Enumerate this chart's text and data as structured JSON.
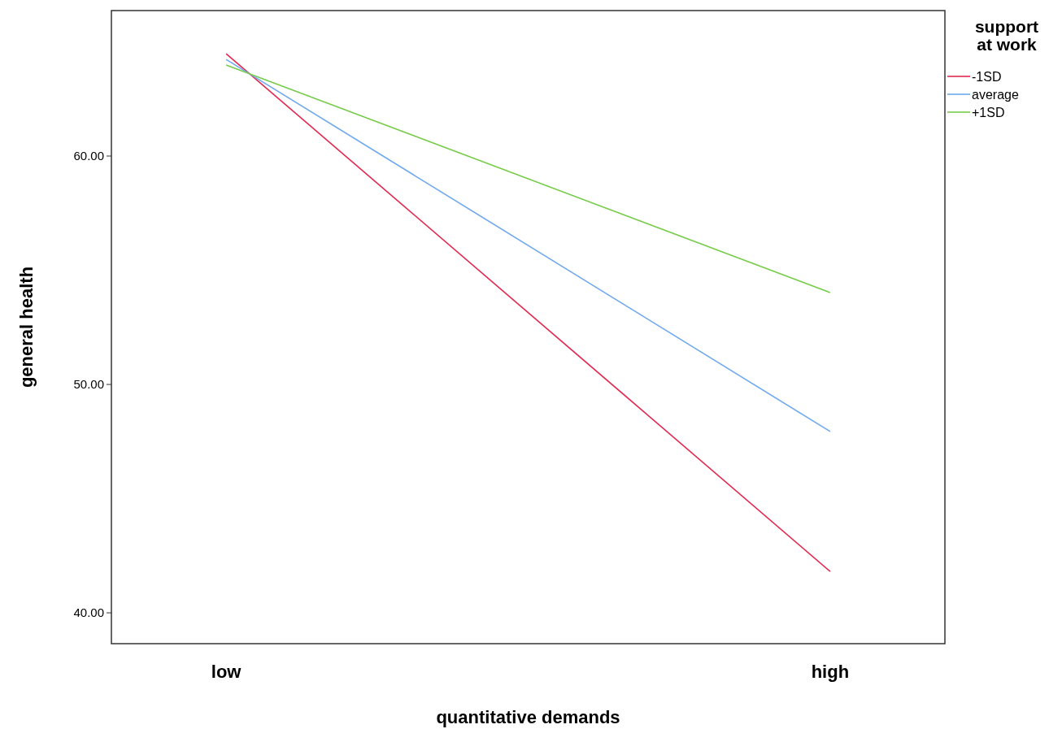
{
  "chart_data": {
    "type": "line",
    "xlabel": "quantitative demands",
    "ylabel": "general health",
    "legend_title": "support\nat work",
    "categories": [
      "low",
      "high"
    ],
    "series": [
      {
        "name": "-1SD",
        "color": "#e2284f",
        "values": [
          64.48,
          41.81
        ]
      },
      {
        "name": "average",
        "color": "#6fa8ee",
        "values": [
          64.23,
          47.94
        ]
      },
      {
        "name": "+1SD",
        "color": "#78cc4c",
        "values": [
          63.99,
          54.02
        ]
      }
    ],
    "ylim": [
      38.65,
      66.37
    ],
    "yticks": [
      {
        "value": 40,
        "label": "40.00"
      },
      {
        "value": 50,
        "label": "50.00"
      },
      {
        "value": 60,
        "label": "60.00"
      }
    ],
    "grid": false,
    "legend": "top right",
    "marker": "none",
    "line_style": "solid"
  }
}
